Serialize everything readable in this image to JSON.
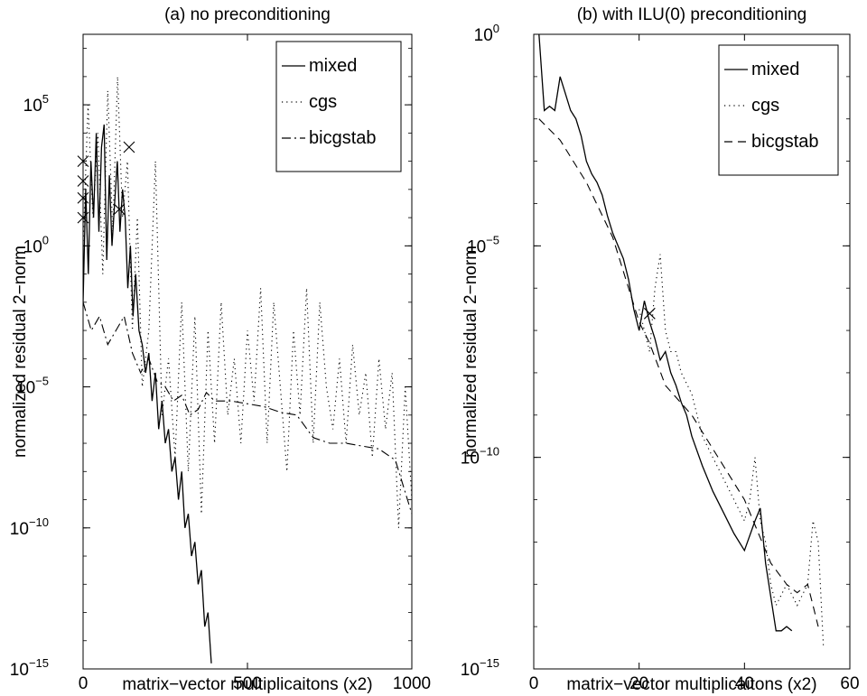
{
  "chart_data": [
    {
      "type": "line",
      "title": "(a) no preconditioning",
      "xlabel": "matrix−vector multiplicaitons (x2)",
      "ylabel": "normalized residual 2−norm",
      "yscale": "log",
      "xlim": [
        0,
        1000
      ],
      "ylim_exp": [
        -15,
        7.5
      ],
      "xticks": [
        0,
        500,
        1000
      ],
      "yticks_exp": [
        -15,
        -10,
        -5,
        0,
        5
      ],
      "legend_position": "top-right",
      "series": [
        {
          "name": "mixed",
          "style": "solid",
          "x": [
            0,
            8,
            16,
            24,
            32,
            40,
            48,
            56,
            64,
            72,
            80,
            88,
            96,
            104,
            112,
            120,
            128,
            136,
            144,
            152,
            160,
            170,
            180,
            190,
            200,
            210,
            220,
            230,
            240,
            250,
            260,
            270,
            280,
            290,
            300,
            310,
            320,
            330,
            340,
            350,
            360,
            370,
            380,
            390
          ],
          "y_exp": [
            -2.0,
            2.0,
            -1.0,
            3.0,
            1.0,
            4.0,
            0.5,
            3.5,
            4.3,
            -0.5,
            2.5,
            0.0,
            1.5,
            3.0,
            0.5,
            2.0,
            1.0,
            -1.5,
            0.0,
            -2.5,
            -1.0,
            -3.0,
            -3.5,
            -4.5,
            -3.8,
            -5.5,
            -4.5,
            -6.5,
            -5.5,
            -7.0,
            -6.5,
            -8.0,
            -7.5,
            -9.0,
            -8.0,
            -10.0,
            -9.5,
            -11.0,
            -10.5,
            -12.0,
            -11.5,
            -13.5,
            -13.0,
            -14.8
          ]
        },
        {
          "name": "cgs",
          "style": "dotted",
          "x": [
            0,
            15,
            30,
            45,
            60,
            75,
            90,
            105,
            120,
            135,
            150,
            165,
            180,
            200,
            220,
            240,
            260,
            280,
            300,
            320,
            340,
            360,
            380,
            400,
            420,
            440,
            460,
            480,
            500,
            520,
            540,
            560,
            580,
            600,
            620,
            640,
            660,
            680,
            700,
            720,
            740,
            760,
            780,
            800,
            820,
            840,
            860,
            880,
            900,
            920,
            940,
            960,
            980,
            1000
          ],
          "y_exp": [
            0.0,
            5.0,
            1.0,
            4.0,
            -1.0,
            5.5,
            0.5,
            6.0,
            1.0,
            3.0,
            -3.0,
            1.0,
            -5.0,
            -3.0,
            3.0,
            -6.0,
            -4.0,
            -7.5,
            -2.0,
            -8.0,
            -2.5,
            -9.5,
            -3.0,
            -7.0,
            -2.0,
            -6.0,
            -4.0,
            -7.0,
            -3.0,
            -5.5,
            -1.5,
            -7.0,
            -2.0,
            -5.0,
            -8.0,
            -3.0,
            -6.0,
            -1.5,
            -7.0,
            -2.0,
            -5.0,
            -6.5,
            -4.0,
            -7.0,
            -3.5,
            -6.0,
            -4.5,
            -7.5,
            -4.0,
            -6.5,
            -4.5,
            -10.0,
            -5.0,
            -9.0
          ]
        },
        {
          "name": "bicgstab",
          "style": "dashdot",
          "x": [
            0,
            25,
            50,
            75,
            100,
            125,
            150,
            175,
            200,
            225,
            250,
            275,
            300,
            325,
            350,
            375,
            400,
            450,
            500,
            550,
            600,
            650,
            700,
            750,
            800,
            850,
            900,
            950,
            1000
          ],
          "y_exp": [
            -2.0,
            -3.0,
            -2.5,
            -3.5,
            -3.0,
            -2.5,
            -3.8,
            -4.5,
            -4.0,
            -4.8,
            -5.0,
            -5.5,
            -5.3,
            -6.0,
            -5.8,
            -5.2,
            -5.5,
            -5.5,
            -5.6,
            -5.7,
            -5.9,
            -6.0,
            -6.8,
            -7.0,
            -7.0,
            -7.1,
            -7.2,
            -7.6,
            -9.5
          ]
        }
      ],
      "markers": {
        "symbol": "x",
        "points": [
          [
            0,
            3.0
          ],
          [
            0,
            2.3
          ],
          [
            0,
            1.7
          ],
          [
            0,
            1.0
          ],
          [
            110,
            1.3
          ],
          [
            140,
            3.5
          ]
        ]
      }
    },
    {
      "type": "line",
      "title": "(b) with ILU(0) preconditioning",
      "xlabel": "matrix−vector multiplicaitons (x2)",
      "ylabel": "normalized residual 2−norm",
      "yscale": "log",
      "xlim": [
        0,
        60
      ],
      "ylim_exp": [
        -15,
        0
      ],
      "xticks": [
        0,
        20,
        40,
        60
      ],
      "yticks_exp": [
        -15,
        -10,
        -5,
        0
      ],
      "legend_position": "top-right",
      "series": [
        {
          "name": "mixed",
          "style": "solid",
          "x": [
            1,
            2,
            3,
            4,
            5,
            6,
            7,
            8,
            9,
            10,
            11,
            12,
            13,
            14,
            15,
            16,
            17,
            18,
            19,
            20,
            21,
            22,
            23,
            24,
            25,
            26,
            27,
            28,
            29,
            30,
            32,
            34,
            36,
            38,
            40,
            42,
            43,
            44,
            45,
            46,
            47,
            48,
            49
          ],
          "y_exp": [
            0.0,
            -1.8,
            -1.7,
            -1.8,
            -1.0,
            -1.4,
            -1.8,
            -2.0,
            -2.4,
            -3.0,
            -3.3,
            -3.5,
            -3.8,
            -4.3,
            -4.7,
            -5.0,
            -5.3,
            -5.8,
            -6.5,
            -7.0,
            -6.3,
            -6.8,
            -7.2,
            -7.7,
            -7.5,
            -8.0,
            -8.3,
            -8.7,
            -9.0,
            -9.5,
            -10.2,
            -10.8,
            -11.3,
            -11.8,
            -12.2,
            -11.5,
            -11.2,
            -12.5,
            -13.3,
            -14.1,
            -14.1,
            -14.0,
            -14.1
          ]
        },
        {
          "name": "cgs",
          "style": "dotted",
          "x": [
            20,
            22,
            23,
            24,
            25,
            26,
            27,
            28,
            30,
            32,
            34,
            36,
            38,
            40,
            41,
            42,
            43,
            44,
            45,
            46,
            48,
            50,
            52,
            53,
            54,
            55
          ],
          "y_exp": [
            -6.5,
            -7.5,
            -6.0,
            -5.2,
            -7.0,
            -7.5,
            -7.5,
            -8.0,
            -8.5,
            -9.5,
            -10.0,
            -10.5,
            -11.0,
            -11.5,
            -11.0,
            -10.0,
            -11.5,
            -12.0,
            -13.0,
            -13.5,
            -13.0,
            -13.5,
            -13.0,
            -11.5,
            -12.0,
            -14.5
          ]
        },
        {
          "name": "bicgstab",
          "style": "dashed",
          "x": [
            1,
            5,
            10,
            15,
            20,
            22,
            25,
            30,
            35,
            40,
            45,
            48,
            50,
            52,
            53,
            54
          ],
          "y_exp": [
            -2.0,
            -2.5,
            -3.5,
            -4.8,
            -6.8,
            -7.3,
            -8.3,
            -9.0,
            -10.0,
            -11.0,
            -12.5,
            -13.0,
            -13.2,
            -13.0,
            -13.5,
            -14.0
          ]
        }
      ],
      "markers": {
        "symbol": "x",
        "points": [
          [
            22,
            -6.6
          ]
        ]
      }
    }
  ]
}
